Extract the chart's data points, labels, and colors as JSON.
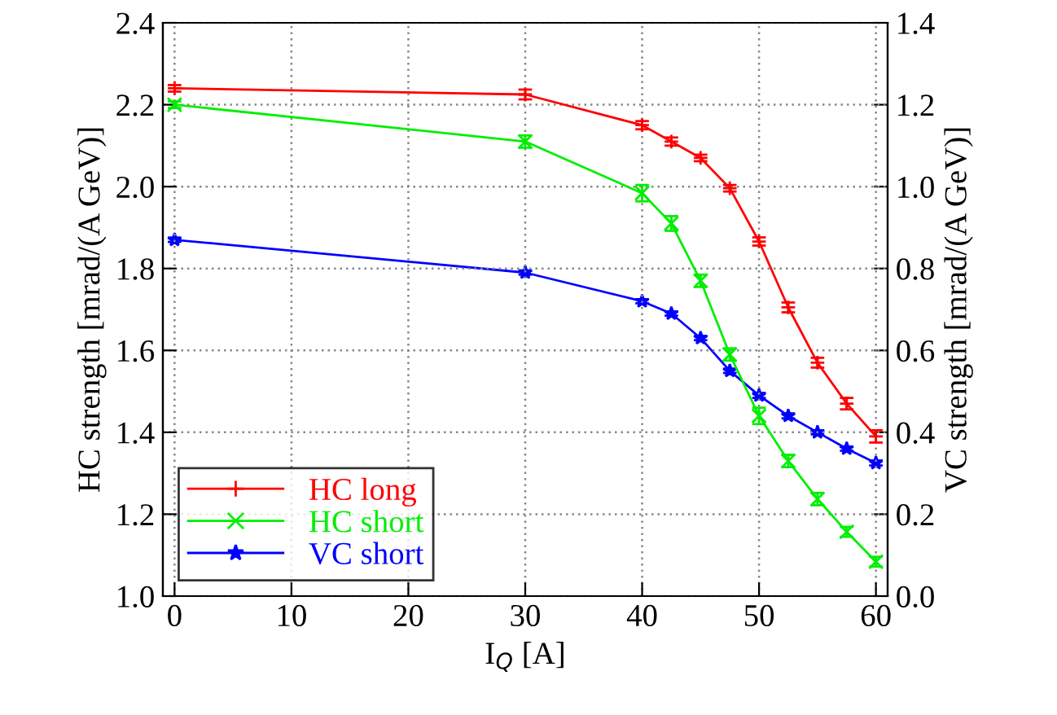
{
  "chart_data": {
    "type": "line",
    "xlabel": "I$_{Q}$ [A]",
    "ylabel": "HC strength [mrad/(A GeV)]",
    "y2label": "VC strength [mrad/(A GeV)]",
    "x": [
      0,
      30,
      40,
      42.5,
      45,
      47.5,
      50,
      52.5,
      55,
      57.5,
      60
    ],
    "series": [
      {
        "name": "HC long",
        "color": "#ff0000",
        "marker": "plus",
        "values": [
          2.24,
          2.225,
          2.15,
          2.11,
          2.07,
          1.996,
          1.866,
          1.705,
          1.57,
          1.47,
          1.39
        ],
        "errors": [
          0.008,
          0.012,
          0.01,
          0.01,
          0.008,
          0.008,
          0.01,
          0.012,
          0.012,
          0.014,
          0.015
        ]
      },
      {
        "name": "HC short",
        "color": "#00ee00",
        "marker": "cross",
        "values": [
          2.2,
          2.11,
          1.984,
          1.91,
          1.77,
          1.59,
          1.44,
          1.33,
          1.237,
          1.157,
          1.084
        ],
        "errors": [
          0.008,
          0.015,
          0.02,
          0.018,
          0.015,
          0.015,
          0.02,
          0.015,
          0.015,
          0.012,
          0.012
        ]
      },
      {
        "name": "VC short",
        "color": "#0000ff",
        "marker": "star",
        "axis": "y2",
        "values": [
          0.87,
          0.79,
          0.72,
          0.69,
          0.63,
          0.55,
          0.49,
          0.44,
          0.4,
          0.36,
          0.325
        ],
        "errors": [
          0.005,
          0.005,
          0.005,
          0.005,
          0.005,
          0.005,
          0.006,
          0.006,
          0.005,
          0.005,
          0.006
        ]
      }
    ],
    "xlim": [
      -1,
      61
    ],
    "xticks": [
      0,
      10,
      20,
      30,
      40,
      50,
      60
    ],
    "ylim": [
      1.0,
      2.4
    ],
    "yticks": [
      {
        "value": 1,
        "label": "1.0"
      },
      1.2,
      1.4,
      1.6,
      1.8,
      {
        "value": 2,
        "label": "2.0"
      },
      2.2,
      2.4
    ],
    "y2lim": [
      0.0,
      1.4
    ],
    "y2ticks": [
      {
        "value": 0,
        "label": "0.0"
      },
      0.2,
      0.4,
      0.6,
      0.8,
      {
        "value": 1,
        "label": "1.0"
      },
      1.2,
      1.4
    ],
    "grid": true,
    "legend": "bottom left",
    "line_style": "solid"
  }
}
